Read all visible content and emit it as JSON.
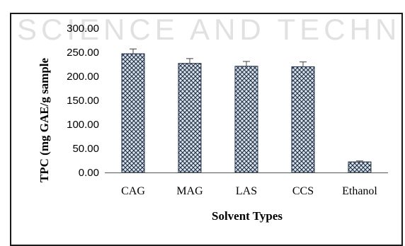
{
  "watermark": "SCIENCE AND TECHNOLOGY",
  "chart_data": {
    "type": "bar",
    "categories": [
      "CAG",
      "MAG",
      "LAS",
      "CCS",
      "Ethanol"
    ],
    "values": [
      247,
      227,
      221,
      220,
      22
    ],
    "errors": [
      10,
      10,
      10,
      10,
      2
    ],
    "ylabel": "TPC (mg GAE/g sample",
    "xlabel": "Solvent Types",
    "ylim": [
      0,
      300
    ],
    "yticks": [
      "0.00",
      "50.00",
      "100.00",
      "150.00",
      "200.00",
      "250.00",
      "300.00"
    ],
    "ytick_values": [
      0,
      50,
      100,
      150,
      200,
      250,
      300
    ],
    "grid": false,
    "bar_fill": "#6d87a6",
    "bar_pattern": "crosshatch",
    "bar_stroke": "#1f2f44"
  }
}
